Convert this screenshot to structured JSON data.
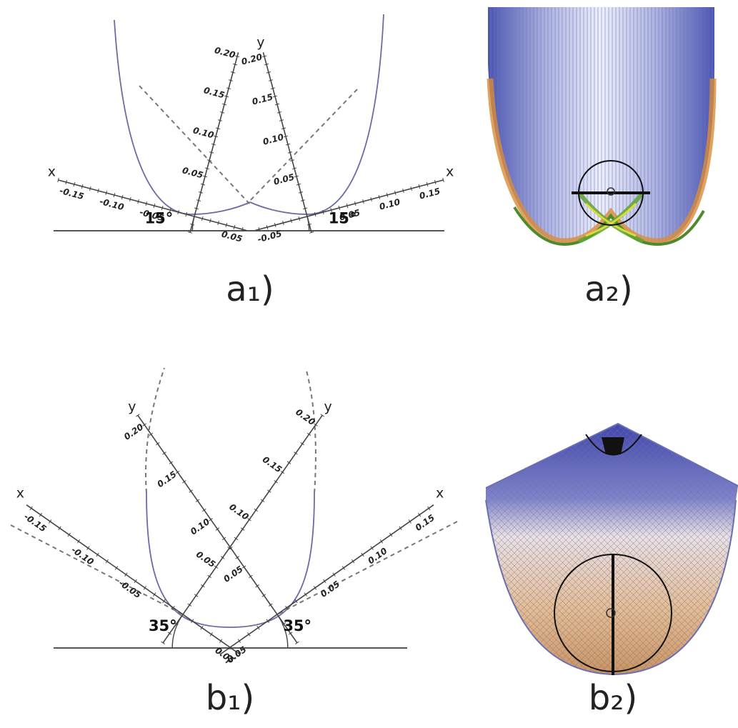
{
  "panels": [
    {
      "caption": "a₁)",
      "frames": [
        {
          "x_label": "x",
          "x_ticks": [
            "-0.15",
            "-0.10",
            "-0.05",
            "0.05"
          ],
          "y_ticks": [
            "0.05",
            "0.10",
            "0.15",
            "0.20"
          ],
          "angle": "15°"
        },
        {
          "x_label": "x",
          "y_label": "y",
          "x_ticks": [
            "-0.05",
            "0.05",
            "0.10",
            "0.15"
          ],
          "y_ticks": [
            "0.05",
            "0.10",
            "0.15",
            "0.20"
          ],
          "angle": "15°"
        }
      ]
    },
    {
      "caption": "a₂)"
    },
    {
      "caption": "b₁)",
      "frames": [
        {
          "x_label": "x",
          "y_label": "y",
          "x_ticks": [
            "-0.15",
            "-0.10",
            "-0.05",
            "0.05"
          ],
          "y_ticks": [
            "0.05",
            "0.10",
            "0.15",
            "0.20"
          ],
          "angle": "35°"
        },
        {
          "x_label": "x",
          "y_label": "y",
          "x_ticks": [
            "-0.05",
            "0.05",
            "0.10",
            "0.15"
          ],
          "y_ticks": [
            "0.05",
            "0.10",
            "0.15",
            "0.20"
          ],
          "angle": "35°"
        }
      ]
    },
    {
      "caption": "b₂)"
    }
  ]
}
